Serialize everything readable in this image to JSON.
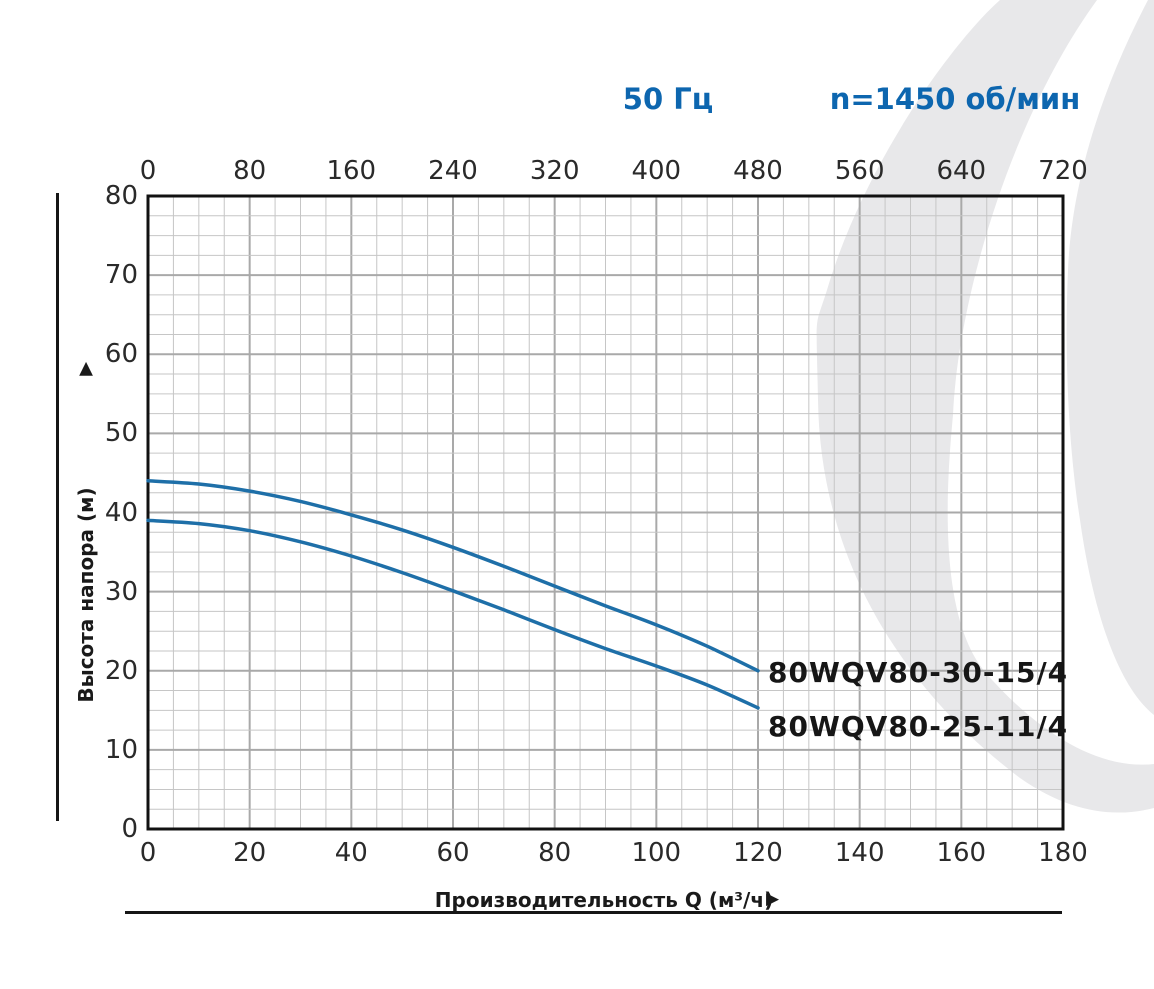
{
  "header": {
    "frequency": "50 Гц",
    "speed": "n=1450 об/мин"
  },
  "icons": {
    "up_arrow": "▲",
    "right_arrow": "▶"
  },
  "colors": {
    "accent_blue_text": "#0d66af",
    "curve_blue": "#1e6fa8",
    "swoosh_gray": "#e8e8ea",
    "grid_minor": "#c6c6c6",
    "grid_major": "#a9a9a9",
    "plot_border": "#111111"
  },
  "chart_data": {
    "type": "line",
    "title": "",
    "x_axis_bottom": {
      "label": "Производительность Q (м³/ч)",
      "ticks": [
        "0",
        "20",
        "40",
        "60",
        "80",
        "100",
        "120",
        "140",
        "160",
        "180"
      ],
      "range": [
        0,
        180
      ]
    },
    "x_axis_top": {
      "label": "",
      "ticks": [
        "0",
        "80",
        "160",
        "240",
        "320",
        "400",
        "480",
        "560",
        "640",
        "720"
      ],
      "range": [
        0,
        720
      ]
    },
    "y_axis": {
      "label": "Высота напора (м)",
      "ticks": [
        "80",
        "70",
        "60",
        "50",
        "40",
        "30",
        "20",
        "10",
        "0"
      ],
      "range": [
        0,
        80
      ]
    },
    "grid": {
      "on": true,
      "minor_x": 5,
      "minor_y": 2.5,
      "major_x": 20,
      "major_y": 10
    },
    "legend_position": "end-of-curve",
    "series": [
      {
        "name": "80WQV80-30-15/4",
        "points": [
          [
            0,
            44
          ],
          [
            10,
            43.6
          ],
          [
            20,
            42.7
          ],
          [
            30,
            41.4
          ],
          [
            40,
            39.7
          ],
          [
            50,
            37.8
          ],
          [
            60,
            35.6
          ],
          [
            70,
            33.2
          ],
          [
            80,
            30.7
          ],
          [
            90,
            28.2
          ],
          [
            100,
            25.8
          ],
          [
            110,
            23.1
          ],
          [
            120,
            20
          ]
        ]
      },
      {
        "name": "80WQV80-25-11/4",
        "points": [
          [
            0,
            39
          ],
          [
            10,
            38.6
          ],
          [
            20,
            37.7
          ],
          [
            30,
            36.3
          ],
          [
            40,
            34.5
          ],
          [
            50,
            32.4
          ],
          [
            60,
            30.1
          ],
          [
            70,
            27.7
          ],
          [
            80,
            25.2
          ],
          [
            90,
            22.8
          ],
          [
            100,
            20.6
          ],
          [
            110,
            18.2
          ],
          [
            120,
            15.3
          ]
        ]
      }
    ]
  }
}
